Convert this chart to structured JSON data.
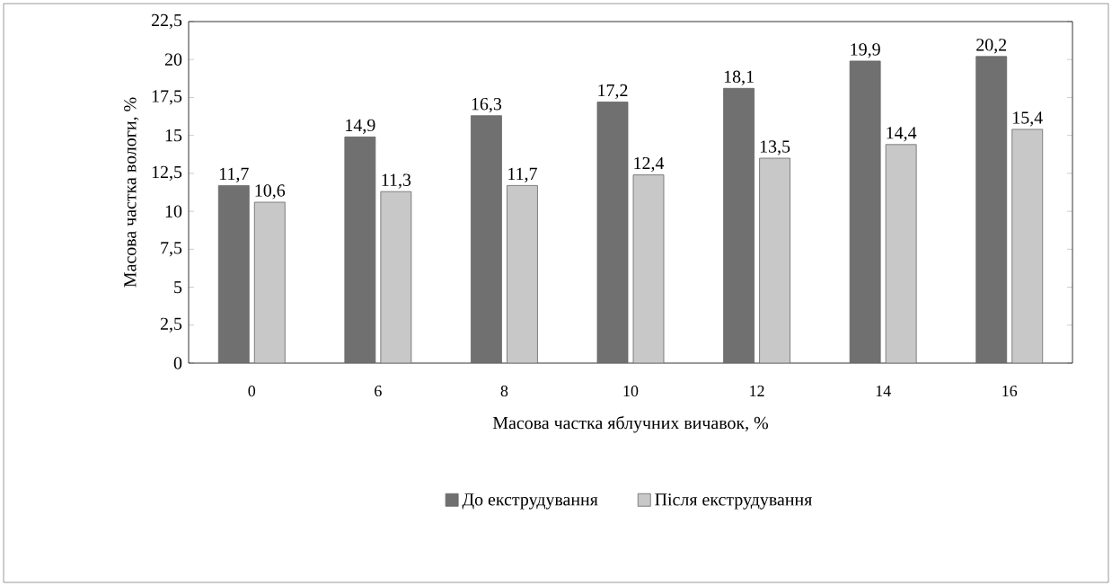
{
  "chart_data": {
    "type": "bar",
    "xlabel": "Масова частка яблучних вичавок, %",
    "ylabel": "Масова частка вологи, %",
    "categories": [
      "0",
      "6",
      "8",
      "10",
      "12",
      "14",
      "16"
    ],
    "series": [
      {
        "name": "До екструдування",
        "color": "#707070",
        "values": [
          11.7,
          14.9,
          16.3,
          17.2,
          18.1,
          19.9,
          20.2
        ],
        "value_labels": [
          "11,7",
          "14,9",
          "16,3",
          "17,2",
          "18,1",
          "19,9",
          "20,2"
        ]
      },
      {
        "name": "Після екструдування",
        "color": "#c8c8c8",
        "values": [
          10.6,
          11.3,
          11.7,
          12.4,
          13.5,
          14.4,
          15.4
        ],
        "value_labels": [
          "10,6",
          "11,3",
          "11,7",
          "12,4",
          "13,5",
          "14,4",
          "15,4"
        ]
      }
    ],
    "ylim": [
      0,
      22.5
    ],
    "yticks": [
      0,
      {
        "value": 2.5,
        "label": "2,5"
      },
      5,
      {
        "value": 7.5,
        "label": "7,5"
      },
      10,
      {
        "value": 12.5,
        "label": "12,5"
      },
      15,
      {
        "value": 17.5,
        "label": "17,5"
      },
      20,
      {
        "value": 22.5,
        "label": "22,5"
      }
    ],
    "legend": "bottom"
  }
}
